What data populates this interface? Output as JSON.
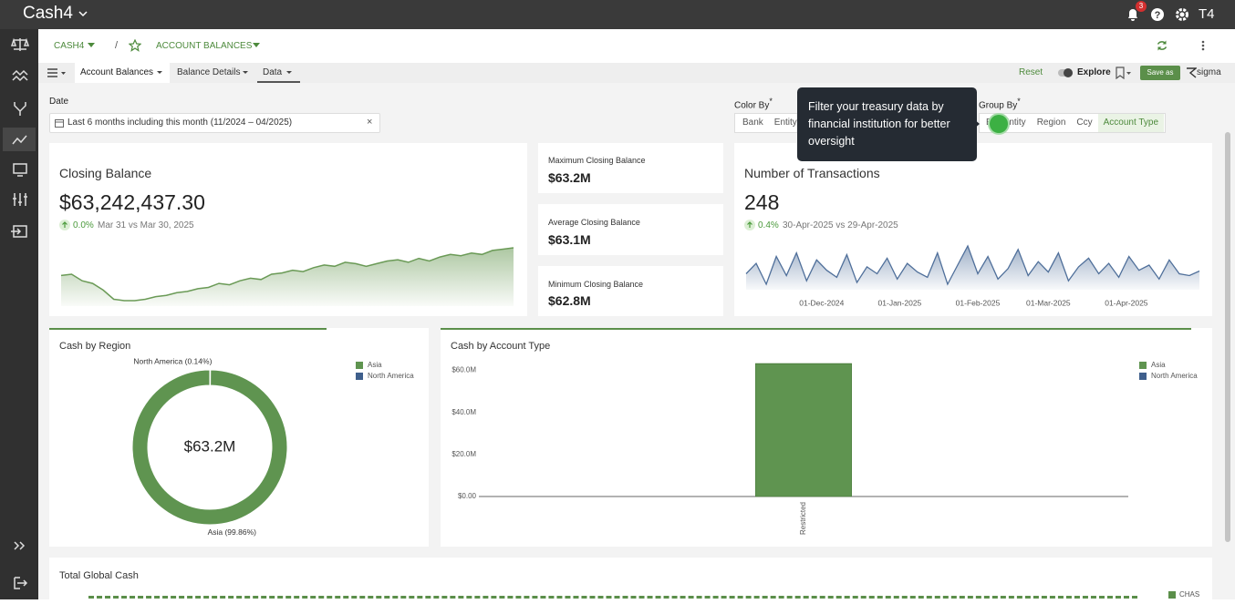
{
  "app_bar": {
    "product": "Cash4",
    "notifications": "3",
    "user": "T4"
  },
  "breadcrumb": {
    "root": "CASH4",
    "separator": "/",
    "page": "ACCOUNT BALANCES"
  },
  "tabs": [
    "Account Balances",
    "Balance Details",
    "Data"
  ],
  "toolbar": {
    "reset": "Reset",
    "explore": "Explore",
    "save": "Save as",
    "brand": "sigma"
  },
  "filters": {
    "date": {
      "label": "Date",
      "value": "Last 6 months including this month (11/2024 – 04/2025)",
      "clear": "×"
    },
    "color_by": {
      "label": "Color By",
      "required": "*",
      "options": [
        "Bank",
        "Entity"
      ]
    },
    "group_by": {
      "label": "Group By",
      "required": "*",
      "options": [
        "B",
        "Entity",
        "Region",
        "Ccy",
        "Account Type"
      ],
      "selected": 4
    }
  },
  "tooltip": "Filter your treasury data by financial institution for better oversight",
  "cards": {
    "closing_balance": {
      "headline": "$63,242,437.30",
      "change": "0.0%",
      "comparison": "Mar 31 vs Mar 30, 2025"
    },
    "transactions": {
      "headline": "248",
      "change": "0.4%",
      "comparison": "30-Apr-2025 vs 29-Apr-2025"
    },
    "stats": [
      {
        "title": "Maximum Closing Balance",
        "value": "$63.2M"
      },
      {
        "title": "Average Closing Balance",
        "value": "$63.1M"
      },
      {
        "title": "Minimum Closing Balance",
        "value": "$62.8M"
      }
    ],
    "total_global_cash": {
      "title": "Total Global Cash",
      "legend": "CHAS"
    }
  },
  "chart_data": [
    {
      "type": "area",
      "title": "Closing Balance",
      "color": "#6a9a56",
      "values": [
        62.99,
        63.0,
        62.95,
        62.93,
        62.88,
        62.81,
        62.8,
        62.8,
        62.81,
        62.83,
        62.84,
        62.86,
        62.87,
        62.89,
        62.9,
        62.93,
        62.92,
        62.95,
        62.97,
        62.96,
        63.0,
        63.01,
        63.03,
        63.02,
        63.05,
        63.07,
        63.06,
        63.09,
        63.08,
        63.06,
        63.08,
        63.1,
        63.11,
        63.09,
        63.12,
        63.1,
        63.13,
        63.15,
        63.14,
        63.16,
        63.15,
        63.18,
        63.19,
        63.2
      ]
    },
    {
      "type": "line",
      "title": "Number of Transactions",
      "color": "#4f6f9a",
      "x": [
        "2024-11-01",
        "2024-11-05",
        "2024-11-09",
        "2024-11-13",
        "2024-11-17",
        "2024-11-21",
        "2024-11-25",
        "2024-11-29",
        "2024-12-03",
        "2024-12-07",
        "2024-12-11",
        "2024-12-15",
        "2024-12-19",
        "2024-12-23",
        "2024-12-27",
        "2024-12-31",
        "2025-01-04",
        "2025-01-08",
        "2025-01-12",
        "2025-01-16",
        "2025-01-20",
        "2025-01-24",
        "2025-01-28",
        "2025-02-01",
        "2025-02-05",
        "2025-02-09",
        "2025-02-13",
        "2025-02-17",
        "2025-02-21",
        "2025-02-25",
        "2025-03-01",
        "2025-03-05",
        "2025-03-09",
        "2025-03-13",
        "2025-03-17",
        "2025-03-21",
        "2025-03-25",
        "2025-03-29",
        "2025-04-02",
        "2025-04-06",
        "2025-04-10",
        "2025-04-14",
        "2025-04-18",
        "2025-04-22",
        "2025-04-26",
        "2025-04-30"
      ],
      "values": [
        240,
        270,
        210,
        290,
        235,
        300,
        220,
        280,
        250,
        230,
        295,
        215,
        260,
        240,
        285,
        225,
        270,
        245,
        230,
        300,
        210,
        265,
        320,
        240,
        290,
        225,
        255,
        310,
        235,
        275,
        245,
        300,
        220,
        260,
        285,
        240,
        270,
        230,
        290,
        250,
        265,
        225,
        280,
        240,
        235,
        248
      ],
      "xlim": [
        "2024-11-01",
        "2025-04-30"
      ],
      "xticks": [
        {
          "value": "2024-12-01",
          "label": "01-Dec-2024"
        },
        {
          "value": "2025-01-01",
          "label": "01-Jan-2025"
        },
        {
          "value": "2025-02-01",
          "label": "01-Feb-2025"
        },
        {
          "value": "2025-03-01",
          "label": "01-Mar-2025"
        },
        {
          "value": "2025-04-01",
          "label": "01-Apr-2025"
        }
      ]
    },
    {
      "type": "pie",
      "title": "Cash by Region",
      "donut": true,
      "center_label": "$63.2M",
      "categories": [
        "North America",
        "Asia"
      ],
      "values": [
        0.14,
        99.86
      ],
      "value_labels": [
        "North America (0.14%)",
        "Asia (99.86%)"
      ],
      "colors": [
        "#3f5f8c",
        "#5f9450"
      ],
      "legend_order": [
        1,
        0
      ]
    },
    {
      "type": "bar",
      "title": "Cash by Account Type",
      "stacked": true,
      "grid": false,
      "categories": [
        "Restricted"
      ],
      "series": [
        {
          "name": "Asia",
          "color": "#5f9450",
          "values": [
            63153898
          ]
        },
        {
          "name": "North America",
          "color": "#3f5f8c",
          "values": [
            88539
          ]
        }
      ],
      "ylim": [
        0,
        65000000
      ],
      "yticks": [
        {
          "value": 0,
          "label": "$0.00"
        },
        {
          "value": 20000000,
          "label": "$20.0M"
        },
        {
          "value": 40000000,
          "label": "$40.0M"
        },
        {
          "value": 60000000,
          "label": "$60.0M"
        }
      ]
    }
  ]
}
